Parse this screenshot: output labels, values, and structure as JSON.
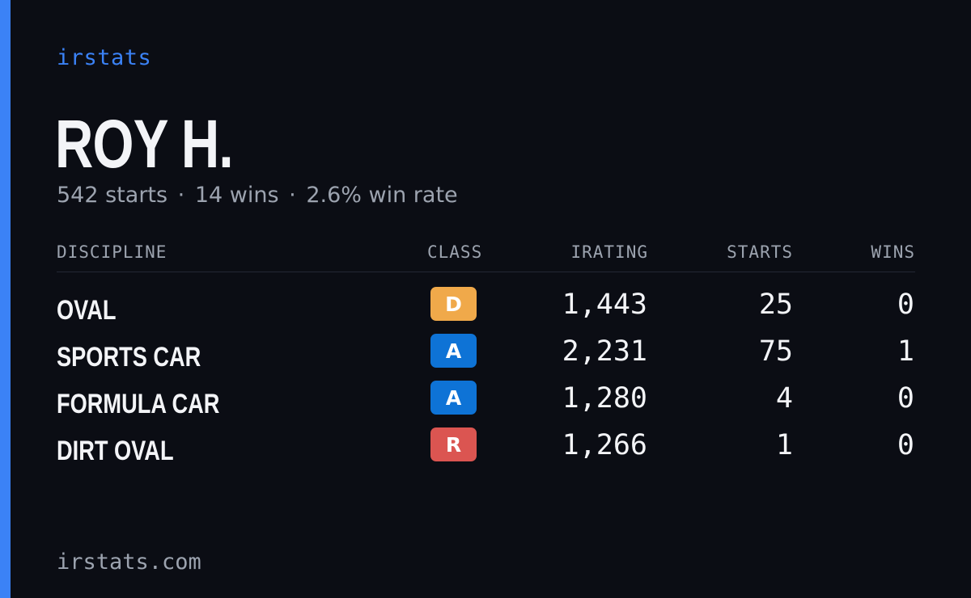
{
  "brand": "irstats",
  "profile": {
    "name": "ROY H.",
    "starts_text": "542 starts",
    "wins_text": "14 wins",
    "win_rate_text": "2.6% win rate",
    "separator": "·"
  },
  "table": {
    "headers": {
      "discipline": "DISCIPLINE",
      "class": "CLASS",
      "irating": "IRATING",
      "starts": "STARTS",
      "wins": "WINS"
    },
    "rows": [
      {
        "discipline": "OVAL",
        "class": "D",
        "irating": "1,443",
        "starts": "25",
        "wins": "0"
      },
      {
        "discipline": "SPORTS CAR",
        "class": "A",
        "irating": "2,231",
        "starts": "75",
        "wins": "1"
      },
      {
        "discipline": "FORMULA CAR",
        "class": "A",
        "irating": "1,280",
        "starts": "4",
        "wins": "0"
      },
      {
        "discipline": "DIRT OVAL",
        "class": "R",
        "irating": "1,266",
        "starts": "1",
        "wins": "0"
      }
    ]
  },
  "footer": {
    "url": "irstats.com"
  },
  "colors": {
    "accent": "#3b82f6",
    "background": "#0b0d14",
    "class_d": "#f0a94a",
    "class_a": "#0e73d6",
    "class_r": "#db5551"
  }
}
